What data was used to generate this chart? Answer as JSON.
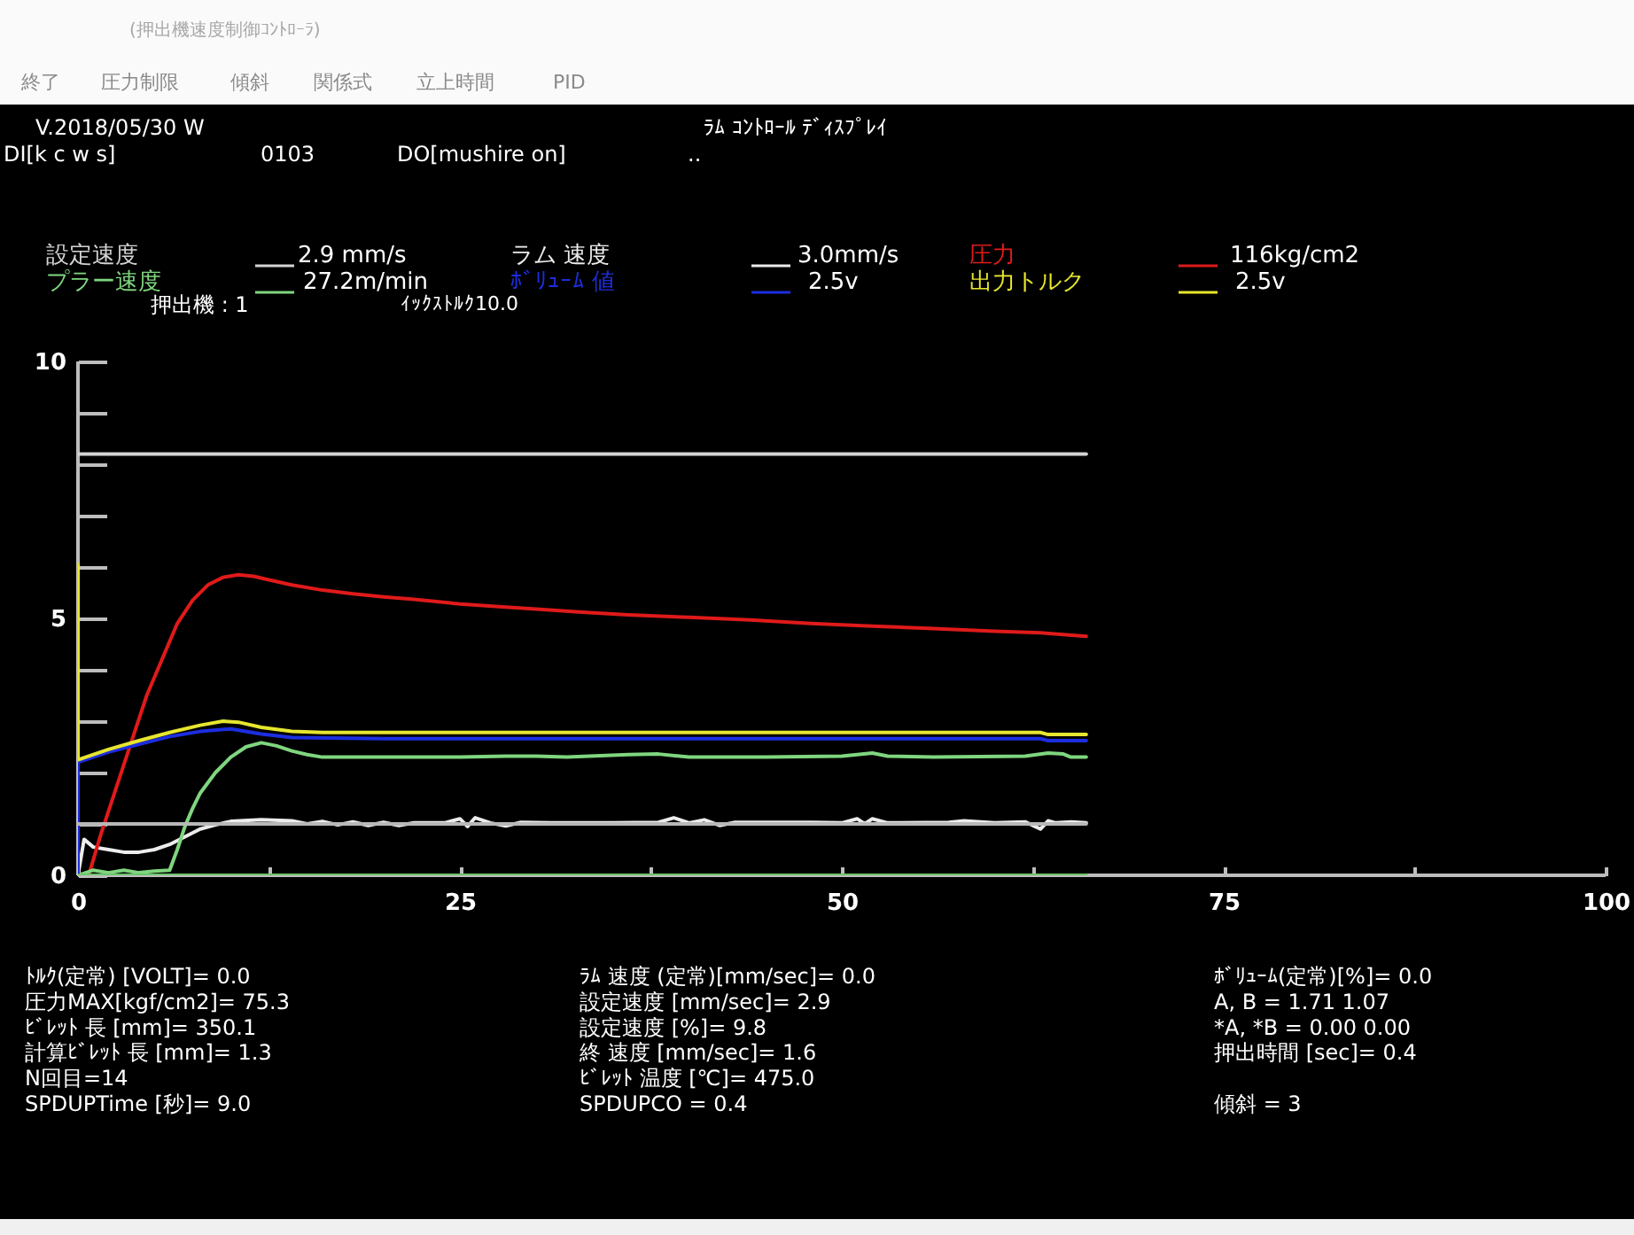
{
  "chart_data": {
    "type": "line",
    "title": "ﾗﾑ ｺﾝﾄﾛｰﾙ ﾃﾞｨｽﾌﾟﾚｲ",
    "xlim": [
      0,
      100
    ],
    "ylim": [
      0,
      10
    ],
    "xticks": [
      0,
      {
        "value": 12.5,
        "label": null
      },
      25,
      {
        "value": 37.5,
        "label": null
      },
      50,
      {
        "value": 62.5,
        "label": null
      },
      75,
      {
        "value": 87.5,
        "label": null
      },
      100
    ],
    "yticks": [
      0,
      {
        "value": 1,
        "label": null
      },
      {
        "value": 2,
        "label": null
      },
      {
        "value": 3,
        "label": null
      },
      {
        "value": 4,
        "label": null
      },
      5,
      {
        "value": 6,
        "label": null
      },
      {
        "value": 7,
        "label": null
      },
      {
        "value": 8,
        "label": null
      },
      {
        "value": 9,
        "label": null
      },
      10
    ],
    "legend": "top",
    "marker": "none",
    "line_style": "solid",
    "series": [
      {
        "name": "設定速度",
        "color": "#d4d4d4",
        "x": [
          0,
          66
        ],
        "values": [
          8.2,
          8.2
        ]
      },
      {
        "name": "ラム 速度",
        "color": "#ececec",
        "x": [
          0,
          0.4,
          1,
          2,
          3,
          4,
          5,
          6,
          7,
          8,
          9,
          10,
          12,
          14,
          15,
          16,
          17,
          18,
          19,
          20,
          21,
          22,
          24,
          25,
          25.5,
          26,
          27,
          28,
          29,
          31,
          35,
          38,
          39,
          40,
          41,
          42,
          43,
          48,
          50,
          51,
          51.5,
          52,
          53,
          57,
          58,
          60,
          62,
          63,
          63.5,
          64,
          65,
          66
        ],
        "values": [
          0,
          0.7,
          0.55,
          0.5,
          0.45,
          0.45,
          0.5,
          0.6,
          0.75,
          0.9,
          0.98,
          1.05,
          1.08,
          1.06,
          1.0,
          1.05,
          0.98,
          1.04,
          0.97,
          1.03,
          0.97,
          1.02,
          1.02,
          1.1,
          0.95,
          1.12,
          1.02,
          0.96,
          1.03,
          1.02,
          1.02,
          1.03,
          1.12,
          1.02,
          1.08,
          0.97,
          1.03,
          1.03,
          1.02,
          1.1,
          1.0,
          1.1,
          1.02,
          1.03,
          1.06,
          1.02,
          1.04,
          0.9,
          1.06,
          1.02,
          1.04,
          1.02
        ]
      },
      {
        "name": "圧力",
        "color": "#e01a1a",
        "x": [
          0.7,
          1.5,
          2.5,
          3.5,
          4.5,
          5.5,
          6.5,
          7.5,
          8.5,
          9.5,
          10.5,
          11.5,
          12.5,
          14,
          16,
          18,
          20,
          22,
          25,
          28,
          30,
          33,
          36,
          40,
          44,
          48,
          52,
          56,
          60,
          63,
          66
        ],
        "values": [
          0,
          0.8,
          1.7,
          2.6,
          3.5,
          4.2,
          4.9,
          5.35,
          5.65,
          5.8,
          5.85,
          5.82,
          5.75,
          5.65,
          5.55,
          5.48,
          5.42,
          5.37,
          5.28,
          5.22,
          5.18,
          5.12,
          5.07,
          5.02,
          4.97,
          4.9,
          4.85,
          4.8,
          4.75,
          4.72,
          4.65
        ]
      },
      {
        "name": "プラー速度",
        "color": "#7fd67f",
        "x": [
          0,
          1,
          2,
          3,
          4,
          5,
          6,
          6.5,
          7,
          7.5,
          8,
          9,
          10,
          11,
          12,
          13,
          14,
          15,
          16,
          20,
          25,
          28,
          30,
          32,
          36,
          38,
          40,
          45,
          50,
          52,
          53,
          56,
          62,
          63.5,
          64.5,
          65,
          66
        ],
        "values": [
          0,
          0.1,
          0.05,
          0.1,
          0.05,
          0.08,
          0.1,
          0.5,
          0.95,
          1.3,
          1.6,
          2.0,
          2.3,
          2.5,
          2.58,
          2.52,
          2.42,
          2.35,
          2.3,
          2.3,
          2.3,
          2.32,
          2.32,
          2.3,
          2.35,
          2.36,
          2.3,
          2.3,
          2.32,
          2.38,
          2.32,
          2.3,
          2.32,
          2.38,
          2.36,
          2.3,
          2.3
        ]
      },
      {
        "name": "ﾎﾞﾘｭｰﾑ 値",
        "color": "#1c2ee0",
        "x": [
          0,
          0,
          2,
          4,
          6,
          8,
          10,
          12,
          14,
          20,
          30,
          40,
          50,
          60,
          63,
          63.5,
          66
        ],
        "values": [
          0,
          2.2,
          2.4,
          2.55,
          2.7,
          2.8,
          2.85,
          2.75,
          2.68,
          2.66,
          2.66,
          2.66,
          2.66,
          2.66,
          2.66,
          2.62,
          2.62
        ]
      },
      {
        "name": "出力トルク",
        "color": "#e6e62e",
        "x": [
          0,
          0,
          2,
          4,
          6,
          8,
          9.5,
          10.5,
          12,
          14,
          16,
          30,
          50,
          63,
          63.5,
          66
        ],
        "values": [
          6.05,
          2.25,
          2.45,
          2.62,
          2.78,
          2.92,
          3.0,
          2.98,
          2.88,
          2.8,
          2.78,
          2.78,
          2.78,
          2.78,
          2.74,
          2.74
        ]
      },
      {
        "color": "#b8b8b8",
        "x": [
          0,
          66
        ],
        "values": [
          1.0,
          1.0
        ]
      },
      {
        "color": "#6cc46c",
        "x": [
          0,
          66
        ],
        "values": [
          0,
          0
        ]
      }
    ],
    "annotations": [
      "(押出機速度制御ｺﾝﾄﾛｰﾗ)",
      "終了",
      "圧力制限",
      "傾斜",
      "関係式",
      "立上時間",
      "PID",
      "V.2018/05/30 W",
      "DI[k c w s]",
      "0103",
      "DO[mushire on]",
      "..",
      "2.9 mm/s",
      "3.0mm/s",
      "116kg/cm2",
      "27.2m/min",
      "2.5v",
      "2.5v",
      "押出機 : 1",
      "ｲｯｸｽﾄﾙｸ10.0",
      "ﾄﾙｸ(定常) [VOLT]= 0.0",
      "圧力MAX[kgf/cm2]= 75.3",
      "ﾋﾞﾚｯﾄ 長 [mm]= 350.1",
      "計算ﾋﾞﾚｯﾄ 長 [mm]= 1.3",
      "N回目=14",
      "SPDUPTime [秒]= 9.0",
      "ﾗﾑ 速度 (定常)[mm/sec]= 0.0",
      "設定速度 [mm/sec]= 2.9",
      "設定速度 [%]= 9.8",
      "終 速度 [mm/sec]= 1.6",
      "ﾋﾞﾚｯﾄ 温度 [℃]= 475.0",
      "SPDUPCO = 0.4",
      "ﾎﾞﾘｭｰﾑ(定常)[%]= 0.0",
      "A, B = 1.71 1.07",
      "*A, *B = 0.00 0.00",
      "押出時間 [sec]= 0.4",
      "傾斜 = 3"
    ]
  }
}
